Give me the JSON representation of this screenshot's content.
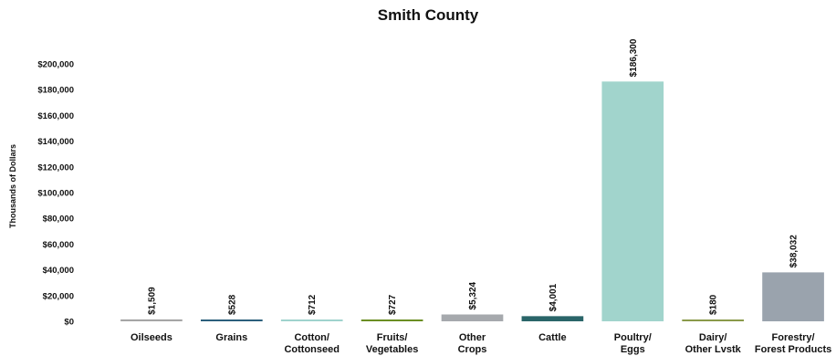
{
  "chart_data": {
    "type": "bar",
    "title": "Smith County",
    "xlabel": "",
    "ylabel": "Thousands of Dollars",
    "ylim": [
      0,
      200000
    ],
    "yticks": [
      0,
      20000,
      40000,
      60000,
      80000,
      100000,
      120000,
      140000,
      160000,
      180000,
      200000
    ],
    "ytick_labels": [
      "$0",
      "$20,000",
      "$40,000",
      "$60,000",
      "$80,000",
      "$100,000",
      "$120,000",
      "$140,000",
      "$160,000",
      "$180,000",
      "$200,000"
    ],
    "grid": false,
    "categories": [
      [
        "Oilseeds"
      ],
      [
        "Grains"
      ],
      [
        "Cotton/",
        "Cottonseed"
      ],
      [
        "Fruits/",
        "Vegetables"
      ],
      [
        "Other",
        "Crops"
      ],
      [
        "Cattle"
      ],
      [
        "Poultry/",
        "Eggs"
      ],
      [
        "Dairy/",
        "Other Lvstk"
      ],
      [
        "Forestry/",
        "Forest Products"
      ]
    ],
    "values": [
      1509,
      528,
      712,
      727,
      5324,
      4001,
      186300,
      180,
      38032
    ],
    "data_labels": [
      "$1,509",
      "$528",
      "$712",
      "$727",
      "$5,324",
      "$4,001",
      "$186,300",
      "$180",
      "$38,032"
    ],
    "colors": [
      "#a6a6a6",
      "#2c5f7c",
      "#9fd3cd",
      "#6b8e23",
      "#a6a9ad",
      "#2a6569",
      "#a1d4cc",
      "#8a9a4a",
      "#9aa3ad"
    ]
  }
}
